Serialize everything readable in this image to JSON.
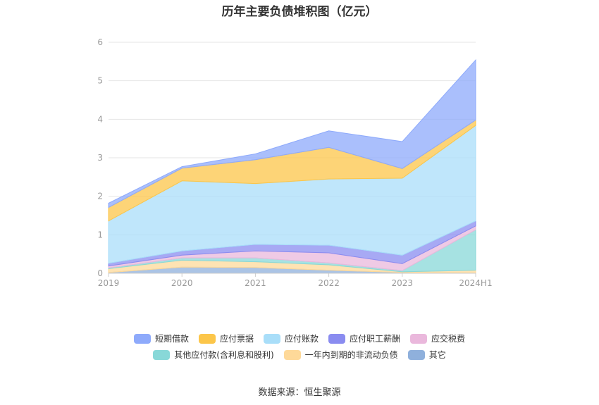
{
  "chart_data": {
    "type": "area",
    "stacked": true,
    "title": "历年主要负债堆积图（亿元）",
    "categories": [
      "2019",
      "2020",
      "2021",
      "2022",
      "2023",
      "2024H1"
    ],
    "ylim": [
      0,
      6
    ],
    "yticks": [
      0,
      1,
      2,
      3,
      4,
      5,
      6
    ],
    "grid": true,
    "legend_position": "bottom",
    "series": [
      {
        "name": "其它",
        "color": "#8fb0dc",
        "values": [
          0.02,
          0.16,
          0.15,
          0.08,
          0.02,
          0.01
        ]
      },
      {
        "name": "一年内到期的非流动负债",
        "color": "#fed999",
        "values": [
          0.1,
          0.18,
          0.15,
          0.14,
          0.02,
          0.07
        ]
      },
      {
        "name": "其他应付款(含利息和股利)",
        "color": "#88d8d8",
        "values": [
          0.02,
          0.06,
          0.1,
          0.05,
          0.03,
          1.05
        ]
      },
      {
        "name": "应交税费",
        "color": "#eab8dc",
        "values": [
          0.05,
          0.07,
          0.18,
          0.26,
          0.18,
          0.1
        ]
      },
      {
        "name": "应付职工薪酬",
        "color": "#8a8cf0",
        "values": [
          0.07,
          0.11,
          0.17,
          0.2,
          0.22,
          0.13
        ]
      },
      {
        "name": "应付账款",
        "color": "#a9def9",
        "values": [
          1.1,
          1.82,
          1.58,
          1.72,
          2.0,
          2.48
        ]
      },
      {
        "name": "应付票据",
        "color": "#fcc64a",
        "values": [
          0.35,
          0.33,
          0.62,
          0.82,
          0.25,
          0.14
        ]
      },
      {
        "name": "短期借款",
        "color": "#8eaafb",
        "values": [
          0.11,
          0.04,
          0.15,
          0.43,
          0.7,
          1.56
        ]
      }
    ]
  },
  "legend": {
    "row1": [
      "短期借款",
      "应付票据",
      "应付账款",
      "应付职工薪酬",
      "应交税费"
    ],
    "row2": [
      "其他应付款(含利息和股利)",
      "一年内到期的非流动负债",
      "其它"
    ]
  },
  "source": "数据来源：恒生聚源"
}
